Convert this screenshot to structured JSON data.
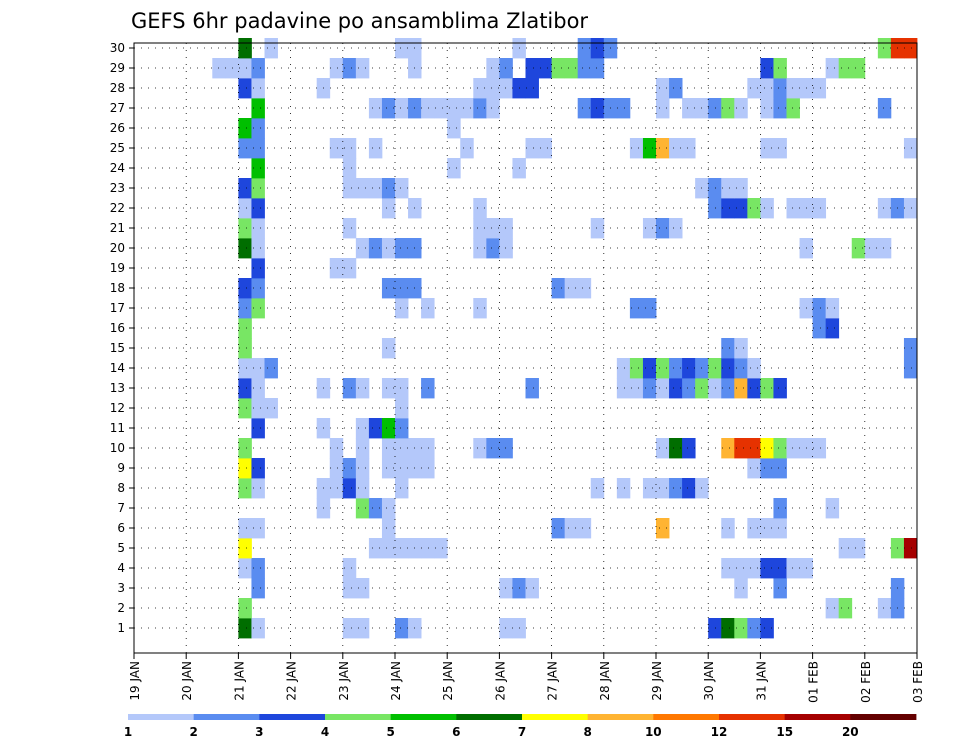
{
  "chart_data": {
    "type": "heatmap",
    "title": "GEFS 6hr padavine po ansamblima Zlatibor",
    "xlabel": "",
    "ylabel": "",
    "y_ticks": [
      1,
      2,
      3,
      4,
      5,
      6,
      7,
      8,
      9,
      10,
      11,
      12,
      13,
      14,
      15,
      16,
      17,
      18,
      19,
      20,
      21,
      22,
      23,
      24,
      25,
      26,
      27,
      28,
      29,
      30
    ],
    "x_ticks": [
      "19 JAN",
      "20 JAN",
      "21 JAN",
      "22 JAN",
      "23 JAN",
      "24 JAN",
      "25 JAN",
      "26 JAN",
      "27 JAN",
      "28 JAN",
      "29 JAN",
      "30 JAN",
      "31 JAN",
      "01 FEB",
      "02 FEB",
      "03 FEB"
    ],
    "steps_per_day": 4,
    "grid": true,
    "legend_position": "bottom",
    "colorbar": {
      "labels": [
        "1",
        "2",
        "3",
        "4",
        "5",
        "6",
        "7",
        "8",
        "10",
        "12",
        "15",
        "20"
      ],
      "colors": [
        "#b4c8fa",
        "#5a8cf0",
        "#1e46dc",
        "#78e664",
        "#00bf00",
        "#006e00",
        "#ffff00",
        "#ffb432",
        "#ff7800",
        "#e63200",
        "#a50000",
        "#640000"
      ]
    },
    "cells": [
      [
        1,
        8,
        6
      ],
      [
        1,
        9,
        1
      ],
      [
        1,
        16,
        1
      ],
      [
        1,
        17,
        1
      ],
      [
        1,
        20,
        2
      ],
      [
        1,
        21,
        1
      ],
      [
        1,
        28,
        1
      ],
      [
        1,
        29,
        1
      ],
      [
        1,
        44,
        3
      ],
      [
        1,
        45,
        6
      ],
      [
        1,
        46,
        4
      ],
      [
        1,
        47,
        2
      ],
      [
        1,
        48,
        3
      ],
      [
        2,
        8,
        4
      ],
      [
        2,
        53,
        1
      ],
      [
        2,
        54,
        4
      ],
      [
        2,
        57,
        1
      ],
      [
        2,
        58,
        2
      ],
      [
        3,
        9,
        2
      ],
      [
        3,
        16,
        1
      ],
      [
        3,
        17,
        1
      ],
      [
        3,
        28,
        1
      ],
      [
        3,
        29,
        2
      ],
      [
        3,
        30,
        1
      ],
      [
        3,
        46,
        1
      ],
      [
        3,
        49,
        2
      ],
      [
        3,
        58,
        2
      ],
      [
        4,
        8,
        1
      ],
      [
        4,
        9,
        2
      ],
      [
        4,
        16,
        1
      ],
      [
        4,
        45,
        1
      ],
      [
        4,
        46,
        1
      ],
      [
        4,
        47,
        1
      ],
      [
        4,
        48,
        3
      ],
      [
        4,
        49,
        3
      ],
      [
        4,
        50,
        1
      ],
      [
        4,
        51,
        1
      ],
      [
        5,
        8,
        7
      ],
      [
        5,
        18,
        1
      ],
      [
        5,
        19,
        1
      ],
      [
        5,
        20,
        1
      ],
      [
        5,
        21,
        1
      ],
      [
        5,
        22,
        1
      ],
      [
        5,
        23,
        1
      ],
      [
        5,
        54,
        1
      ],
      [
        5,
        55,
        1
      ],
      [
        5,
        58,
        4
      ],
      [
        5,
        59,
        11
      ],
      [
        6,
        8,
        1
      ],
      [
        6,
        9,
        1
      ],
      [
        6,
        19,
        1
      ],
      [
        6,
        32,
        2
      ],
      [
        6,
        33,
        1
      ],
      [
        6,
        34,
        1
      ],
      [
        6,
        40,
        8
      ],
      [
        6,
        45,
        1
      ],
      [
        6,
        47,
        1
      ],
      [
        6,
        48,
        1
      ],
      [
        6,
        49,
        1
      ],
      [
        7,
        14,
        1
      ],
      [
        7,
        17,
        4
      ],
      [
        7,
        18,
        2
      ],
      [
        7,
        19,
        1
      ],
      [
        7,
        49,
        2
      ],
      [
        7,
        53,
        1
      ],
      [
        8,
        8,
        4
      ],
      [
        8,
        9,
        1
      ],
      [
        8,
        14,
        1
      ],
      [
        8,
        15,
        1
      ],
      [
        8,
        16,
        3
      ],
      [
        8,
        17,
        1
      ],
      [
        8,
        20,
        1
      ],
      [
        8,
        35,
        1
      ],
      [
        8,
        37,
        1
      ],
      [
        8,
        39,
        1
      ],
      [
        8,
        40,
        1
      ],
      [
        8,
        41,
        2
      ],
      [
        8,
        42,
        3
      ],
      [
        8,
        43,
        1
      ],
      [
        9,
        8,
        7
      ],
      [
        9,
        9,
        3
      ],
      [
        9,
        15,
        1
      ],
      [
        9,
        16,
        2
      ],
      [
        9,
        17,
        1
      ],
      [
        9,
        19,
        1
      ],
      [
        9,
        20,
        1
      ],
      [
        9,
        21,
        1
      ],
      [
        9,
        22,
        1
      ],
      [
        9,
        47,
        1
      ],
      [
        9,
        48,
        2
      ],
      [
        9,
        49,
        2
      ],
      [
        10,
        8,
        4
      ],
      [
        10,
        15,
        1
      ],
      [
        10,
        17,
        1
      ],
      [
        10,
        19,
        1
      ],
      [
        10,
        20,
        1
      ],
      [
        10,
        21,
        1
      ],
      [
        10,
        22,
        1
      ],
      [
        10,
        26,
        1
      ],
      [
        10,
        27,
        2
      ],
      [
        10,
        28,
        2
      ],
      [
        10,
        40,
        1
      ],
      [
        10,
        41,
        6
      ],
      [
        10,
        42,
        3
      ],
      [
        10,
        45,
        8
      ],
      [
        10,
        46,
        10
      ],
      [
        10,
        47,
        10
      ],
      [
        10,
        48,
        7
      ],
      [
        10,
        49,
        4
      ],
      [
        10,
        50,
        1
      ],
      [
        10,
        51,
        1
      ],
      [
        10,
        52,
        1
      ],
      [
        11,
        9,
        3
      ],
      [
        11,
        14,
        1
      ],
      [
        11,
        17,
        1
      ],
      [
        11,
        18,
        3
      ],
      [
        11,
        19,
        5
      ],
      [
        11,
        20,
        2
      ],
      [
        12,
        8,
        4
      ],
      [
        12,
        9,
        1
      ],
      [
        12,
        10,
        1
      ],
      [
        12,
        20,
        1
      ],
      [
        13,
        8,
        3
      ],
      [
        13,
        9,
        1
      ],
      [
        13,
        14,
        1
      ],
      [
        13,
        16,
        2
      ],
      [
        13,
        17,
        1
      ],
      [
        13,
        19,
        1
      ],
      [
        13,
        20,
        1
      ],
      [
        13,
        22,
        2
      ],
      [
        13,
        30,
        2
      ],
      [
        13,
        37,
        1
      ],
      [
        13,
        38,
        1
      ],
      [
        13,
        39,
        2
      ],
      [
        13,
        40,
        1
      ],
      [
        13,
        41,
        3
      ],
      [
        13,
        42,
        2
      ],
      [
        13,
        43,
        4
      ],
      [
        13,
        44,
        1
      ],
      [
        13,
        45,
        2
      ],
      [
        13,
        46,
        8
      ],
      [
        13,
        47,
        3
      ],
      [
        13,
        48,
        4
      ],
      [
        13,
        49,
        3
      ],
      [
        14,
        8,
        1
      ],
      [
        14,
        9,
        1
      ],
      [
        14,
        10,
        2
      ],
      [
        14,
        37,
        1
      ],
      [
        14,
        38,
        4
      ],
      [
        14,
        39,
        3
      ],
      [
        14,
        40,
        4
      ],
      [
        14,
        41,
        2
      ],
      [
        14,
        42,
        3
      ],
      [
        14,
        43,
        2
      ],
      [
        14,
        44,
        4
      ],
      [
        14,
        45,
        3
      ],
      [
        14,
        46,
        2
      ],
      [
        14,
        47,
        1
      ],
      [
        14,
        59,
        2
      ],
      [
        15,
        8,
        4
      ],
      [
        15,
        19,
        1
      ],
      [
        15,
        45,
        2
      ],
      [
        15,
        46,
        1
      ],
      [
        15,
        59,
        2
      ],
      [
        16,
        8,
        4
      ],
      [
        16,
        52,
        2
      ],
      [
        16,
        53,
        3
      ],
      [
        17,
        8,
        2
      ],
      [
        17,
        9,
        4
      ],
      [
        17,
        20,
        1
      ],
      [
        17,
        22,
        1
      ],
      [
        17,
        26,
        1
      ],
      [
        17,
        38,
        2
      ],
      [
        17,
        39,
        2
      ],
      [
        17,
        51,
        1
      ],
      [
        17,
        52,
        2
      ],
      [
        17,
        53,
        1
      ],
      [
        18,
        8,
        3
      ],
      [
        18,
        9,
        2
      ],
      [
        18,
        19,
        2
      ],
      [
        18,
        20,
        2
      ],
      [
        18,
        21,
        2
      ],
      [
        18,
        32,
        2
      ],
      [
        18,
        33,
        1
      ],
      [
        18,
        34,
        1
      ],
      [
        19,
        9,
        3
      ],
      [
        19,
        15,
        1
      ],
      [
        19,
        16,
        1
      ],
      [
        20,
        8,
        6
      ],
      [
        20,
        9,
        1
      ],
      [
        20,
        17,
        1
      ],
      [
        20,
        18,
        2
      ],
      [
        20,
        19,
        1
      ],
      [
        20,
        20,
        2
      ],
      [
        20,
        21,
        2
      ],
      [
        20,
        26,
        1
      ],
      [
        20,
        27,
        2
      ],
      [
        20,
        28,
        1
      ],
      [
        20,
        51,
        1
      ],
      [
        20,
        55,
        4
      ],
      [
        20,
        56,
        1
      ],
      [
        20,
        57,
        1
      ],
      [
        21,
        8,
        4
      ],
      [
        21,
        9,
        1
      ],
      [
        21,
        16,
        1
      ],
      [
        21,
        26,
        1
      ],
      [
        21,
        27,
        1
      ],
      [
        21,
        28,
        1
      ],
      [
        21,
        35,
        1
      ],
      [
        21,
        39,
        1
      ],
      [
        21,
        40,
        2
      ],
      [
        21,
        41,
        1
      ],
      [
        22,
        8,
        1
      ],
      [
        22,
        9,
        3
      ],
      [
        22,
        19,
        1
      ],
      [
        22,
        21,
        1
      ],
      [
        22,
        26,
        1
      ],
      [
        22,
        44,
        2
      ],
      [
        22,
        45,
        3
      ],
      [
        22,
        46,
        3
      ],
      [
        22,
        47,
        4
      ],
      [
        22,
        48,
        1
      ],
      [
        22,
        50,
        1
      ],
      [
        22,
        51,
        1
      ],
      [
        22,
        52,
        1
      ],
      [
        22,
        57,
        1
      ],
      [
        22,
        58,
        2
      ],
      [
        22,
        59,
        1
      ],
      [
        23,
        8,
        3
      ],
      [
        23,
        9,
        4
      ],
      [
        23,
        16,
        1
      ],
      [
        23,
        17,
        1
      ],
      [
        23,
        18,
        1
      ],
      [
        23,
        19,
        2
      ],
      [
        23,
        20,
        1
      ],
      [
        23,
        43,
        1
      ],
      [
        23,
        44,
        2
      ],
      [
        23,
        45,
        1
      ],
      [
        23,
        46,
        1
      ],
      [
        24,
        9,
        5
      ],
      [
        24,
        16,
        1
      ],
      [
        24,
        24,
        1
      ],
      [
        24,
        29,
        1
      ],
      [
        25,
        8,
        2
      ],
      [
        25,
        9,
        2
      ],
      [
        25,
        15,
        1
      ],
      [
        25,
        16,
        1
      ],
      [
        25,
        18,
        1
      ],
      [
        25,
        25,
        1
      ],
      [
        25,
        30,
        1
      ],
      [
        25,
        31,
        1
      ],
      [
        25,
        38,
        1
      ],
      [
        25,
        39,
        5
      ],
      [
        25,
        40,
        8
      ],
      [
        25,
        41,
        1
      ],
      [
        25,
        42,
        1
      ],
      [
        25,
        48,
        1
      ],
      [
        25,
        49,
        1
      ],
      [
        25,
        59,
        1
      ],
      [
        26,
        8,
        5
      ],
      [
        26,
        9,
        2
      ],
      [
        26,
        24,
        1
      ],
      [
        27,
        9,
        5
      ],
      [
        27,
        18,
        1
      ],
      [
        27,
        19,
        2
      ],
      [
        27,
        20,
        1
      ],
      [
        27,
        21,
        2
      ],
      [
        27,
        22,
        1
      ],
      [
        27,
        23,
        1
      ],
      [
        27,
        24,
        1
      ],
      [
        27,
        25,
        1
      ],
      [
        27,
        26,
        2
      ],
      [
        27,
        27,
        1
      ],
      [
        27,
        34,
        2
      ],
      [
        27,
        35,
        3
      ],
      [
        27,
        36,
        2
      ],
      [
        27,
        37,
        2
      ],
      [
        27,
        40,
        1
      ],
      [
        27,
        42,
        1
      ],
      [
        27,
        43,
        1
      ],
      [
        27,
        44,
        2
      ],
      [
        27,
        45,
        4
      ],
      [
        27,
        46,
        1
      ],
      [
        27,
        48,
        1
      ],
      [
        27,
        49,
        2
      ],
      [
        27,
        50,
        4
      ],
      [
        27,
        57,
        2
      ],
      [
        28,
        8,
        3
      ],
      [
        28,
        9,
        1
      ],
      [
        28,
        14,
        1
      ],
      [
        28,
        26,
        1
      ],
      [
        28,
        27,
        1
      ],
      [
        28,
        28,
        1
      ],
      [
        28,
        29,
        3
      ],
      [
        28,
        30,
        3
      ],
      [
        28,
        40,
        1
      ],
      [
        28,
        41,
        2
      ],
      [
        28,
        47,
        1
      ],
      [
        28,
        48,
        1
      ],
      [
        28,
        49,
        2
      ],
      [
        28,
        50,
        1
      ],
      [
        28,
        51,
        1
      ],
      [
        28,
        52,
        1
      ],
      [
        29,
        6,
        1
      ],
      [
        29,
        7,
        1
      ],
      [
        29,
        8,
        1
      ],
      [
        29,
        9,
        2
      ],
      [
        29,
        15,
        1
      ],
      [
        29,
        16,
        2
      ],
      [
        29,
        17,
        1
      ],
      [
        29,
        21,
        1
      ],
      [
        29,
        27,
        1
      ],
      [
        29,
        28,
        2
      ],
      [
        29,
        30,
        3
      ],
      [
        29,
        31,
        3
      ],
      [
        29,
        32,
        4
      ],
      [
        29,
        33,
        4
      ],
      [
        29,
        34,
        2
      ],
      [
        29,
        35,
        2
      ],
      [
        29,
        48,
        3
      ],
      [
        29,
        49,
        4
      ],
      [
        29,
        53,
        1
      ],
      [
        29,
        54,
        4
      ],
      [
        29,
        55,
        4
      ],
      [
        30,
        8,
        6
      ],
      [
        30,
        10,
        1
      ],
      [
        30,
        20,
        1
      ],
      [
        30,
        21,
        1
      ],
      [
        30,
        29,
        1
      ],
      [
        30,
        34,
        2
      ],
      [
        30,
        35,
        3
      ],
      [
        30,
        36,
        2
      ],
      [
        30,
        57,
        4
      ],
      [
        30,
        58,
        10
      ],
      [
        30,
        59,
        10
      ]
    ]
  }
}
